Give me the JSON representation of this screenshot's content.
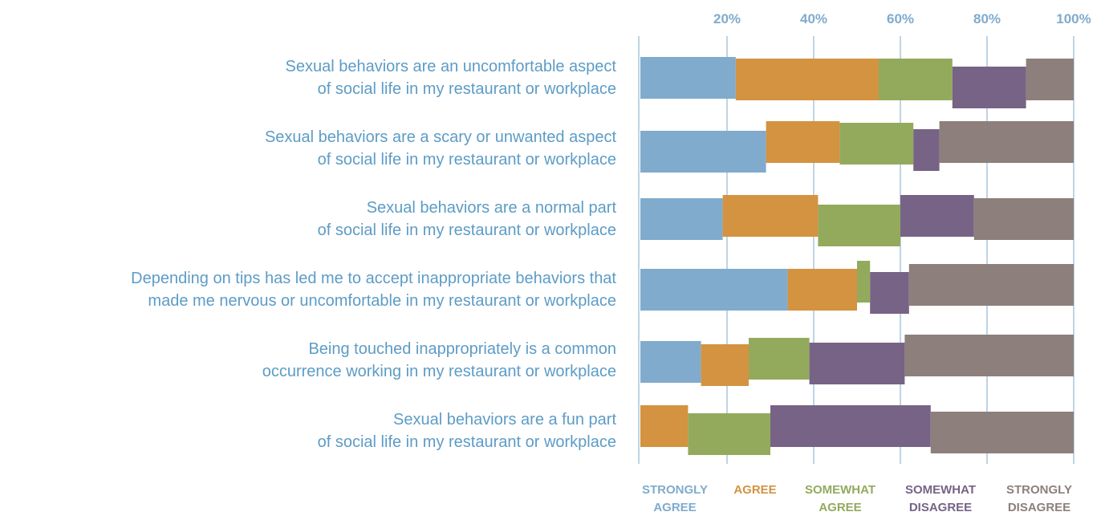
{
  "chart_data": {
    "type": "stacked-barh",
    "categories": [
      "Sexual behaviors are an uncomfortable aspect\nof social life in my restaurant or workplace",
      "Sexual behaviors are a scary or unwanted aspect\nof social life in my restaurant or workplace",
      "Sexual behaviors are a normal part\nof social life in my restaurant or workplace",
      "Depending on tips has led me to accept inappropriate behaviors that\nmade me nervous or uncomfortable in my restaurant or workplace",
      "Being touched inappropriately is a common\noccurrence working in my restaurant or workplace",
      "Sexual behaviors are a fun part\nof social life in my restaurant or workplace"
    ],
    "series": [
      {
        "name": "STRONGLY AGREE",
        "color": "#80abcc",
        "values": [
          22,
          29,
          19,
          34,
          14,
          0
        ]
      },
      {
        "name": "AGREE",
        "color": "#d39340",
        "values": [
          33,
          17,
          22,
          16,
          11,
          11
        ]
      },
      {
        "name": "SOMEWHAT AGREE",
        "color": "#93aa5c",
        "values": [
          17,
          17,
          19,
          3,
          14,
          19
        ]
      },
      {
        "name": "SOMEWHAT DISAGREE",
        "color": "#776385",
        "values": [
          17,
          6,
          17,
          9,
          22,
          37
        ]
      },
      {
        "name": "STRONGLY DISAGREE",
        "color": "#8d7f7b",
        "values": [
          11,
          31,
          23,
          38,
          39,
          33
        ]
      }
    ],
    "xlim": [
      0,
      100
    ],
    "xticks": [
      {
        "value": 20,
        "label": "20%"
      },
      {
        "value": 40,
        "label": "40%"
      },
      {
        "value": 60,
        "label": "60%"
      },
      {
        "value": 80,
        "label": "80%"
      },
      {
        "value": 100,
        "label": "100%"
      }
    ],
    "grid": true
  }
}
